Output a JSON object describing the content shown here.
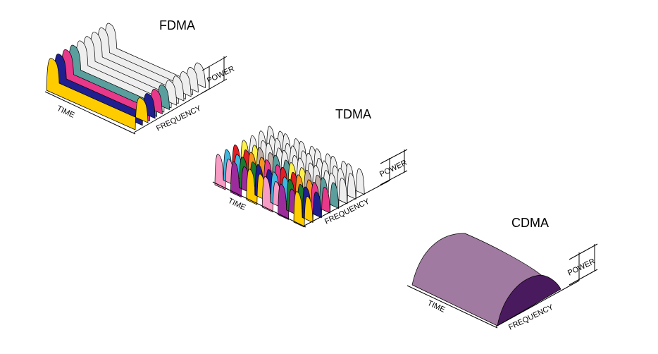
{
  "diagrams": [
    {
      "key": "fdma",
      "title": "FDMA",
      "time_label": "TIME",
      "frequency_label": "FREQUENCY",
      "power_label": "POWER",
      "channel_colors": [
        "#FFCC00",
        "#1F1F8F",
        "#E8388A",
        "#5A9E9E",
        "#EEEEEE",
        "#EEEEEE",
        "#EEEEEE",
        "#EEEEEE",
        "#EEEEEE"
      ]
    },
    {
      "key": "tdma",
      "title": "TDMA",
      "time_label": "TIME",
      "frequency_label": "FREQUENCY",
      "power_label": "POWER",
      "slot_grid": [
        [
          "#F79CC4",
          "#9C2C9C",
          "#FFCC00",
          "#F79CC4",
          "#9C2C9C",
          "#FFCC00"
        ],
        [
          "#3FB8E0",
          "#1A7A2E",
          "#1F1F8F",
          "#3FB8E0",
          "#1A7A2E",
          "#1F1F8F"
        ],
        [
          "#E31E24",
          "#F7941D",
          "#E8388A",
          "#E31E24",
          "#F7941D",
          "#E8388A"
        ],
        [
          "#FFF14A",
          "#BFAFA8",
          "#5A9E9E",
          "#FFF14A",
          "#BFAFA8",
          "#5A9E9E"
        ],
        [
          "#EEEEEE",
          "#EEEEEE",
          "#EEEEEE",
          "#EEEEEE",
          "#EEEEEE",
          "#EEEEEE"
        ],
        [
          "#EEEEEE",
          "#EEEEEE",
          "#EEEEEE",
          "#EEEEEE",
          "#EEEEEE",
          "#EEEEEE"
        ],
        [
          "#EEEEEE",
          "#EEEEEE",
          "#EEEEEE",
          "#EEEEEE",
          "#EEEEEE",
          "#EEEEEE"
        ]
      ]
    },
    {
      "key": "cdma",
      "title": "CDMA",
      "time_label": "TIME",
      "frequency_label": "FREQUENCY",
      "power_label": "POWER",
      "fill_color": "#A07AA0",
      "end_color": "#4A1A5E"
    }
  ]
}
